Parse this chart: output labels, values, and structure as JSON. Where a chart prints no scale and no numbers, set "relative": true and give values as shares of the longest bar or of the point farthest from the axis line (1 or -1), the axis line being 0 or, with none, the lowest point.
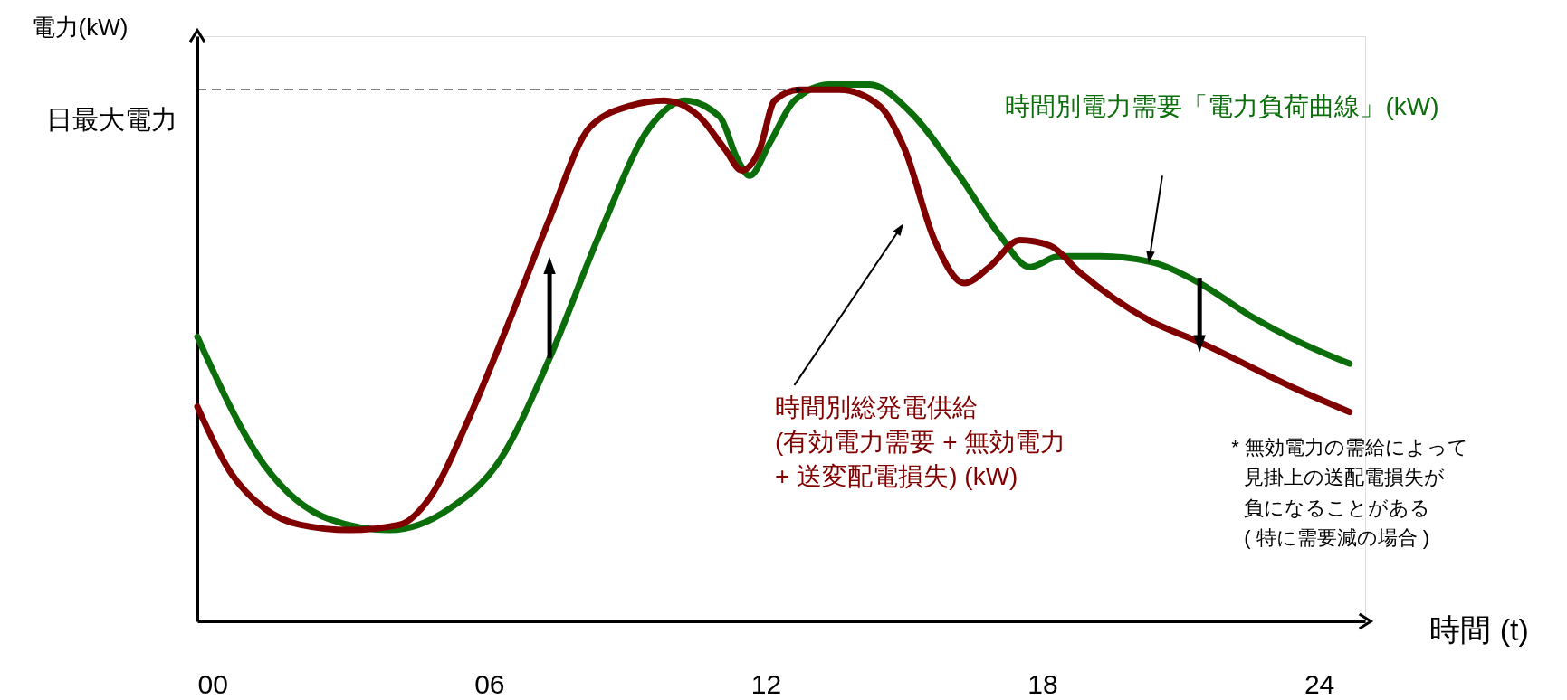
{
  "chart_data": {
    "type": "line",
    "relative": true,
    "xlim": [
      -0.33,
      25
    ],
    "xticks": [
      {
        "value": 0,
        "label": "00"
      },
      {
        "value": 6,
        "label": "06"
      },
      {
        "value": 12,
        "label": "12"
      },
      {
        "value": 18,
        "label": "18"
      },
      {
        "value": 24,
        "label": "24"
      }
    ],
    "xlabel": "時間 (t)",
    "ylabel": "電力(kW)",
    "legend": false,
    "grid": false,
    "marker": "none",
    "line_style": "solid",
    "series": [
      {
        "name": "時間別電力需要「電力負荷曲線」(kW)",
        "color": "#0b6e0b",
        "x": [
          -0.33,
          1.13,
          2.54,
          3.84,
          5.14,
          6.23,
          7.31,
          8.39,
          9.48,
          10.24,
          11.0,
          11.39,
          11.65,
          12.08,
          12.62,
          13.38,
          14.25,
          15.12,
          16.2,
          17.07,
          17.72,
          18.37,
          19.24,
          20.33,
          21.41,
          22.49,
          23.58,
          24.66
        ],
        "values": [
          0.53,
          0.29,
          0.19,
          0.17,
          0.21,
          0.3,
          0.49,
          0.72,
          0.92,
          0.97,
          0.94,
          0.86,
          0.83,
          0.89,
          0.97,
          1.0,
          1.0,
          0.95,
          0.83,
          0.72,
          0.66,
          0.68,
          0.68,
          0.67,
          0.63,
          0.57,
          0.52,
          0.48
        ]
      },
      {
        "name": "時間別総発電供給\n(有効電力需要 + 無効電力\n + 送変配電損失)  (kW)",
        "color": "#800000",
        "x": [
          -0.33,
          0.37,
          1.13,
          1.89,
          2.97,
          4.06,
          4.71,
          5.57,
          6.44,
          7.31,
          8.18,
          9.05,
          9.8,
          10.56,
          11.11,
          11.48,
          11.87,
          12.19,
          12.73,
          13.6,
          14.47,
          15.01,
          15.66,
          16.31,
          16.85,
          17.51,
          18.16,
          18.81,
          20.33,
          21.41,
          23.58,
          24.66
        ],
        "values": [
          0.4,
          0.28,
          0.21,
          0.18,
          0.17,
          0.18,
          0.23,
          0.38,
          0.56,
          0.75,
          0.92,
          0.96,
          0.97,
          0.94,
          0.88,
          0.84,
          0.88,
          0.97,
          0.99,
          0.99,
          0.96,
          0.88,
          0.71,
          0.63,
          0.66,
          0.71,
          0.7,
          0.65,
          0.56,
          0.52,
          0.43,
          0.39
        ]
      }
    ],
    "ref_lines": [
      {
        "axis": "y",
        "value": 0.99,
        "label": "日最大電力",
        "line_style": "dashed",
        "color": "#000000"
      }
    ],
    "annotations": [
      "* 無効電力の需給によって",
      "見掛上の送配電損失が",
      "負になることがある",
      "( 特に需要減の場合 )"
    ]
  }
}
